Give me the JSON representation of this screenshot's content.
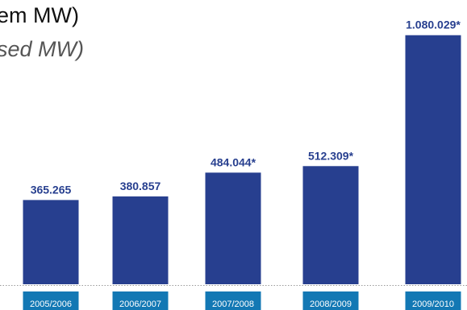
{
  "title": "em MW)",
  "subtitle": "sed MW)",
  "colors": {
    "bar": "#273f8f",
    "value_label": "#273f8f",
    "tick_tab": "#1378b4",
    "tick_text": "#ffffff",
    "baseline": "#9a9a9a"
  },
  "chart_data": {
    "type": "bar",
    "categories": [
      "2005/2006",
      "2006/2007",
      "2007/2008",
      "2008/2009",
      "2009/2010"
    ],
    "values": [
      365265,
      380857,
      484044,
      512309,
      1080029
    ],
    "value_labels": [
      "365.265",
      "380.857",
      "484.044*",
      "512.309*",
      "1.080.029*"
    ],
    "title": "em MW)",
    "subtitle": "sed MW)",
    "xlabel": "",
    "ylabel": "",
    "ylim": [
      0,
      1100000
    ],
    "grid": false,
    "legend": "none"
  }
}
